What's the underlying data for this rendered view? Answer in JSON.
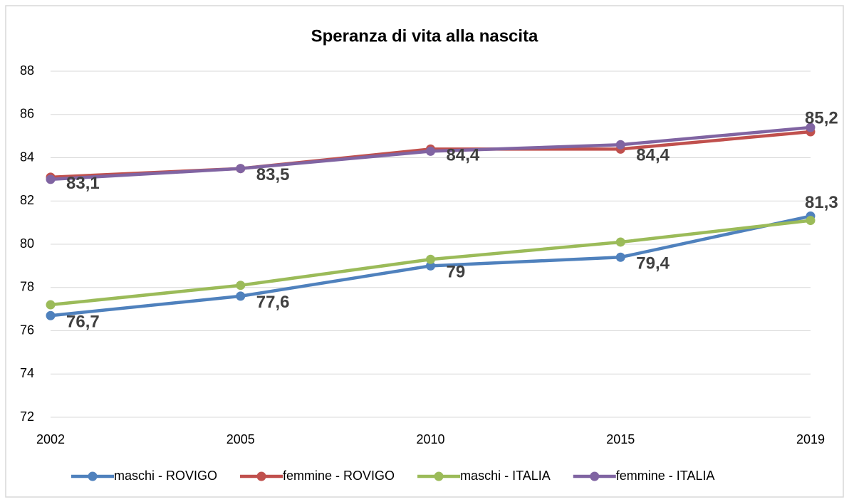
{
  "chart_data": {
    "type": "line",
    "title": "Speranza di vita alla nascita",
    "categories": [
      "2002",
      "2005",
      "2010",
      "2015",
      "2019"
    ],
    "series": [
      {
        "name": "maschi - ROVIGO",
        "color": "#4f81bd",
        "values": [
          76.7,
          77.6,
          79,
          79.4,
          81.3
        ],
        "value_labels": [
          "76,7",
          "77,6",
          "79",
          "79,4",
          "81,3"
        ]
      },
      {
        "name": "femmine - ROVIGO",
        "color": "#c0504d",
        "values": [
          83.1,
          83.5,
          84.4,
          84.4,
          85.2
        ],
        "value_labels": [
          "83,1",
          "83,5",
          "84,4",
          "84,4",
          "85,2"
        ]
      },
      {
        "name": "maschi - ITALIA",
        "color": "#9bbb59",
        "values": [
          77.2,
          78.1,
          79.3,
          80.1,
          81.1
        ]
      },
      {
        "name": "femmine - ITALIA",
        "color": "#8064a2",
        "values": [
          83.0,
          83.5,
          84.3,
          84.6,
          85.4
        ]
      }
    ],
    "ylim": [
      72,
      88
    ],
    "yticks": [
      72,
      74,
      76,
      78,
      80,
      82,
      84,
      86,
      88
    ],
    "grid": true,
    "legend": "bottom"
  }
}
